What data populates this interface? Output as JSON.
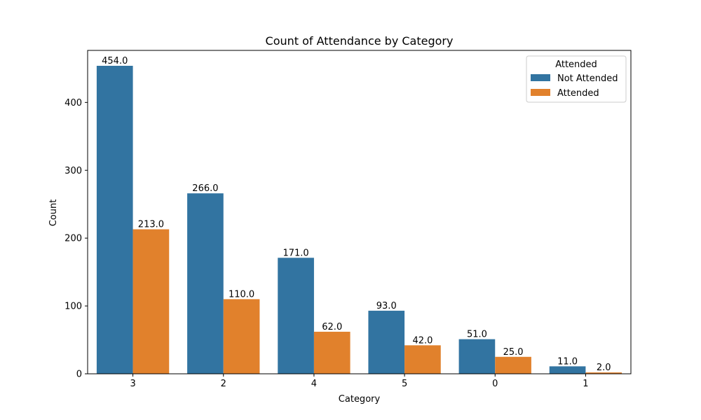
{
  "chart_data": {
    "type": "bar",
    "title": "Count of Attendance by Category",
    "xlabel": "Category",
    "ylabel": "Count",
    "categories": [
      "3",
      "2",
      "4",
      "5",
      "0",
      "1"
    ],
    "series": [
      {
        "name": "Not Attended",
        "color": "#3274a1",
        "values": [
          454,
          266,
          171,
          93,
          51,
          11
        ],
        "labels": [
          "454.0",
          "266.0",
          "171.0",
          "93.0",
          "51.0",
          "11.0"
        ]
      },
      {
        "name": "Attended",
        "color": "#e1812c",
        "values": [
          213,
          110,
          62,
          42,
          25,
          2
        ],
        "labels": [
          "213.0",
          "110.0",
          "62.0",
          "42.0",
          "25.0",
          "2.0"
        ]
      }
    ],
    "ylim": [
      0,
      476.7
    ],
    "yticks": [
      0,
      100,
      200,
      300,
      400
    ],
    "legend": {
      "title": "Attended",
      "position": "top-right"
    },
    "grid": false
  }
}
